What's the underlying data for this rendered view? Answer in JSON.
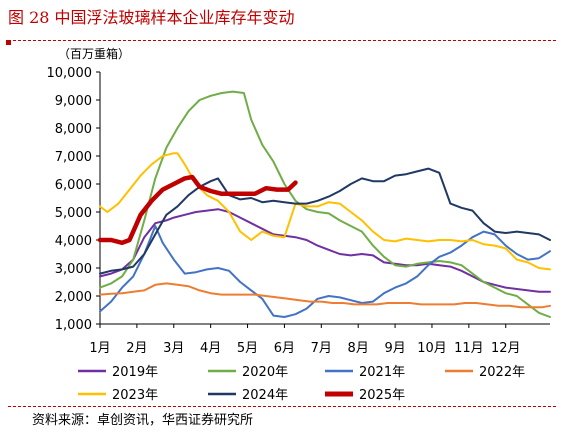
{
  "header": {
    "title": "图 28 中国浮法玻璃样本企业库存年变动",
    "source": "资料来源：卓创资讯，华西证券研究所"
  },
  "chart_data": {
    "type": "line",
    "unit": "（百万重箱）",
    "ylim": [
      1000,
      10000
    ],
    "yticks": [
      "1,000",
      "2,000",
      "3,000",
      "4,000",
      "5,000",
      "6,000",
      "7,000",
      "8,000",
      "9,000",
      "10,000"
    ],
    "ytick_values": [
      1000,
      2000,
      3000,
      4000,
      5000,
      6000,
      7000,
      8000,
      9000,
      10000
    ],
    "categories": [
      "1月",
      "2月",
      "3月",
      "4月",
      "5月",
      "6月",
      "7月",
      "8月",
      "9月",
      "10月",
      "11月",
      "12月"
    ],
    "xlim": [
      1,
      13.2
    ],
    "grid": false,
    "legend_position": "bottom",
    "series": [
      {
        "name": "2019年",
        "color": "#7030a0",
        "width": 2,
        "points": [
          [
            1.0,
            2700
          ],
          [
            1.3,
            2800
          ],
          [
            1.6,
            2950
          ],
          [
            1.9,
            3300
          ],
          [
            2.2,
            4100
          ],
          [
            2.5,
            4600
          ],
          [
            2.8,
            4700
          ],
          [
            3.0,
            4800
          ],
          [
            3.3,
            4900
          ],
          [
            3.6,
            5000
          ],
          [
            3.9,
            5050
          ],
          [
            4.2,
            5100
          ],
          [
            4.5,
            5000
          ],
          [
            4.8,
            4800
          ],
          [
            5.1,
            4600
          ],
          [
            5.4,
            4400
          ],
          [
            5.7,
            4200
          ],
          [
            6.0,
            4150
          ],
          [
            6.3,
            4100
          ],
          [
            6.6,
            4000
          ],
          [
            6.9,
            3800
          ],
          [
            7.2,
            3650
          ],
          [
            7.5,
            3500
          ],
          [
            7.8,
            3450
          ],
          [
            8.1,
            3500
          ],
          [
            8.4,
            3450
          ],
          [
            8.7,
            3200
          ],
          [
            9.0,
            3150
          ],
          [
            9.3,
            3100
          ],
          [
            9.6,
            3100
          ],
          [
            9.9,
            3150
          ],
          [
            10.2,
            3100
          ],
          [
            10.5,
            3050
          ],
          [
            10.8,
            2900
          ],
          [
            11.1,
            2700
          ],
          [
            11.4,
            2500
          ],
          [
            11.7,
            2400
          ],
          [
            12.0,
            2300
          ],
          [
            12.3,
            2250
          ],
          [
            12.6,
            2200
          ],
          [
            12.9,
            2150
          ],
          [
            13.2,
            2150
          ]
        ]
      },
      {
        "name": "2020年",
        "color": "#70ad47",
        "width": 2,
        "points": [
          [
            1.0,
            2300
          ],
          [
            1.3,
            2450
          ],
          [
            1.6,
            2700
          ],
          [
            1.9,
            3300
          ],
          [
            2.2,
            4700
          ],
          [
            2.5,
            6200
          ],
          [
            2.8,
            7300
          ],
          [
            3.1,
            8000
          ],
          [
            3.4,
            8600
          ],
          [
            3.7,
            9000
          ],
          [
            4.0,
            9150
          ],
          [
            4.3,
            9250
          ],
          [
            4.6,
            9300
          ],
          [
            4.9,
            9250
          ],
          [
            5.1,
            8300
          ],
          [
            5.4,
            7400
          ],
          [
            5.7,
            6800
          ],
          [
            6.0,
            6000
          ],
          [
            6.3,
            5400
          ],
          [
            6.6,
            5100
          ],
          [
            6.9,
            5000
          ],
          [
            7.2,
            4950
          ],
          [
            7.5,
            4700
          ],
          [
            7.8,
            4500
          ],
          [
            8.1,
            4300
          ],
          [
            8.4,
            3800
          ],
          [
            8.7,
            3400
          ],
          [
            9.0,
            3100
          ],
          [
            9.3,
            3050
          ],
          [
            9.6,
            3150
          ],
          [
            9.9,
            3200
          ],
          [
            10.2,
            3250
          ],
          [
            10.5,
            3200
          ],
          [
            10.8,
            3100
          ],
          [
            11.1,
            2800
          ],
          [
            11.4,
            2500
          ],
          [
            11.7,
            2300
          ],
          [
            12.0,
            2100
          ],
          [
            12.3,
            2000
          ],
          [
            12.6,
            1700
          ],
          [
            12.9,
            1400
          ],
          [
            13.2,
            1250
          ]
        ]
      },
      {
        "name": "2021年",
        "color": "#4472c4",
        "width": 2,
        "points": [
          [
            1.0,
            1450
          ],
          [
            1.3,
            1800
          ],
          [
            1.6,
            2300
          ],
          [
            1.9,
            2700
          ],
          [
            2.2,
            3500
          ],
          [
            2.5,
            4500
          ],
          [
            2.7,
            3900
          ],
          [
            3.0,
            3300
          ],
          [
            3.3,
            2800
          ],
          [
            3.6,
            2850
          ],
          [
            3.9,
            2950
          ],
          [
            4.2,
            3000
          ],
          [
            4.5,
            2900
          ],
          [
            4.8,
            2500
          ],
          [
            5.1,
            2200
          ],
          [
            5.4,
            1900
          ],
          [
            5.7,
            1300
          ],
          [
            6.0,
            1250
          ],
          [
            6.3,
            1350
          ],
          [
            6.6,
            1550
          ],
          [
            6.9,
            1900
          ],
          [
            7.2,
            2000
          ],
          [
            7.5,
            1950
          ],
          [
            7.8,
            1850
          ],
          [
            8.1,
            1750
          ],
          [
            8.4,
            1800
          ],
          [
            8.7,
            2100
          ],
          [
            9.0,
            2300
          ],
          [
            9.3,
            2450
          ],
          [
            9.6,
            2700
          ],
          [
            9.9,
            3100
          ],
          [
            10.2,
            3400
          ],
          [
            10.5,
            3550
          ],
          [
            10.8,
            3800
          ],
          [
            11.1,
            4100
          ],
          [
            11.4,
            4300
          ],
          [
            11.7,
            4200
          ],
          [
            12.0,
            3800
          ],
          [
            12.3,
            3500
          ],
          [
            12.6,
            3300
          ],
          [
            12.9,
            3350
          ],
          [
            13.2,
            3600
          ]
        ]
      },
      {
        "name": "2022年",
        "color": "#ed7d31",
        "width": 2,
        "points": [
          [
            1.0,
            2050
          ],
          [
            1.3,
            2080
          ],
          [
            1.6,
            2100
          ],
          [
            1.9,
            2150
          ],
          [
            2.2,
            2200
          ],
          [
            2.5,
            2400
          ],
          [
            2.8,
            2450
          ],
          [
            3.1,
            2400
          ],
          [
            3.4,
            2350
          ],
          [
            3.7,
            2200
          ],
          [
            4.0,
            2100
          ],
          [
            4.3,
            2050
          ],
          [
            4.6,
            2050
          ],
          [
            4.9,
            2050
          ],
          [
            5.2,
            2050
          ],
          [
            5.5,
            2000
          ],
          [
            5.8,
            1950
          ],
          [
            6.1,
            1900
          ],
          [
            6.4,
            1850
          ],
          [
            6.7,
            1800
          ],
          [
            7.0,
            1800
          ],
          [
            7.3,
            1750
          ],
          [
            7.6,
            1750
          ],
          [
            7.9,
            1700
          ],
          [
            8.2,
            1700
          ],
          [
            8.5,
            1700
          ],
          [
            8.8,
            1750
          ],
          [
            9.1,
            1750
          ],
          [
            9.4,
            1750
          ],
          [
            9.7,
            1700
          ],
          [
            10.0,
            1700
          ],
          [
            10.3,
            1700
          ],
          [
            10.6,
            1700
          ],
          [
            10.9,
            1750
          ],
          [
            11.2,
            1750
          ],
          [
            11.5,
            1700
          ],
          [
            11.8,
            1650
          ],
          [
            12.1,
            1650
          ],
          [
            12.4,
            1600
          ],
          [
            12.7,
            1600
          ],
          [
            13.0,
            1600
          ],
          [
            13.2,
            1650
          ]
        ]
      },
      {
        "name": "2023年",
        "color": "#ffc000",
        "width": 2,
        "points": [
          [
            1.0,
            5200
          ],
          [
            1.2,
            5000
          ],
          [
            1.5,
            5300
          ],
          [
            1.8,
            5800
          ],
          [
            2.1,
            6300
          ],
          [
            2.4,
            6700
          ],
          [
            2.7,
            7000
          ],
          [
            3.0,
            7100
          ],
          [
            3.1,
            7100
          ],
          [
            3.3,
            6700
          ],
          [
            3.6,
            6000
          ],
          [
            3.9,
            5600
          ],
          [
            4.2,
            5400
          ],
          [
            4.5,
            5000
          ],
          [
            4.8,
            4300
          ],
          [
            5.1,
            4000
          ],
          [
            5.4,
            4300
          ],
          [
            5.7,
            4150
          ],
          [
            6.0,
            4100
          ],
          [
            6.3,
            5300
          ],
          [
            6.6,
            5200
          ],
          [
            6.9,
            5200
          ],
          [
            7.2,
            5350
          ],
          [
            7.5,
            5300
          ],
          [
            7.8,
            5000
          ],
          [
            8.1,
            4700
          ],
          [
            8.4,
            4300
          ],
          [
            8.7,
            4000
          ],
          [
            9.0,
            3950
          ],
          [
            9.3,
            4050
          ],
          [
            9.6,
            4000
          ],
          [
            9.9,
            3950
          ],
          [
            10.2,
            4000
          ],
          [
            10.5,
            4000
          ],
          [
            10.8,
            3950
          ],
          [
            11.1,
            4000
          ],
          [
            11.4,
            3850
          ],
          [
            11.7,
            3800
          ],
          [
            12.0,
            3700
          ],
          [
            12.3,
            3300
          ],
          [
            12.6,
            3200
          ],
          [
            12.9,
            3000
          ],
          [
            13.2,
            2950
          ]
        ]
      },
      {
        "name": "2024年",
        "color": "#1f3864",
        "width": 2,
        "points": [
          [
            1.0,
            2800
          ],
          [
            1.3,
            2900
          ],
          [
            1.6,
            2950
          ],
          [
            1.9,
            3050
          ],
          [
            2.2,
            3500
          ],
          [
            2.5,
            4200
          ],
          [
            2.8,
            4900
          ],
          [
            3.1,
            5200
          ],
          [
            3.4,
            5600
          ],
          [
            3.7,
            5900
          ],
          [
            4.0,
            6100
          ],
          [
            4.2,
            6200
          ],
          [
            4.5,
            5600
          ],
          [
            4.8,
            5450
          ],
          [
            5.1,
            5500
          ],
          [
            5.4,
            5350
          ],
          [
            5.7,
            5400
          ],
          [
            6.0,
            5350
          ],
          [
            6.3,
            5300
          ],
          [
            6.6,
            5300
          ],
          [
            6.9,
            5400
          ],
          [
            7.2,
            5550
          ],
          [
            7.5,
            5750
          ],
          [
            7.8,
            6000
          ],
          [
            8.1,
            6200
          ],
          [
            8.4,
            6100
          ],
          [
            8.7,
            6100
          ],
          [
            9.0,
            6300
          ],
          [
            9.3,
            6350
          ],
          [
            9.6,
            6450
          ],
          [
            9.9,
            6550
          ],
          [
            10.2,
            6400
          ],
          [
            10.5,
            5300
          ],
          [
            10.8,
            5150
          ],
          [
            11.1,
            5050
          ],
          [
            11.4,
            4600
          ],
          [
            11.7,
            4300
          ],
          [
            12.0,
            4250
          ],
          [
            12.3,
            4300
          ],
          [
            12.6,
            4250
          ],
          [
            12.9,
            4200
          ],
          [
            13.2,
            4000
          ]
        ]
      },
      {
        "name": "2025年",
        "color": "#c00000",
        "width": 4.5,
        "points": [
          [
            1.0,
            4000
          ],
          [
            1.3,
            4000
          ],
          [
            1.6,
            3900
          ],
          [
            1.8,
            4000
          ],
          [
            2.1,
            4900
          ],
          [
            2.4,
            5400
          ],
          [
            2.7,
            5800
          ],
          [
            3.0,
            6000
          ],
          [
            3.3,
            6200
          ],
          [
            3.5,
            6250
          ],
          [
            3.7,
            5900
          ],
          [
            4.0,
            5750
          ],
          [
            4.3,
            5650
          ],
          [
            4.6,
            5650
          ],
          [
            4.9,
            5650
          ],
          [
            5.2,
            5650
          ],
          [
            5.5,
            5850
          ],
          [
            5.8,
            5800
          ],
          [
            6.1,
            5800
          ],
          [
            6.3,
            6050
          ]
        ]
      }
    ]
  }
}
